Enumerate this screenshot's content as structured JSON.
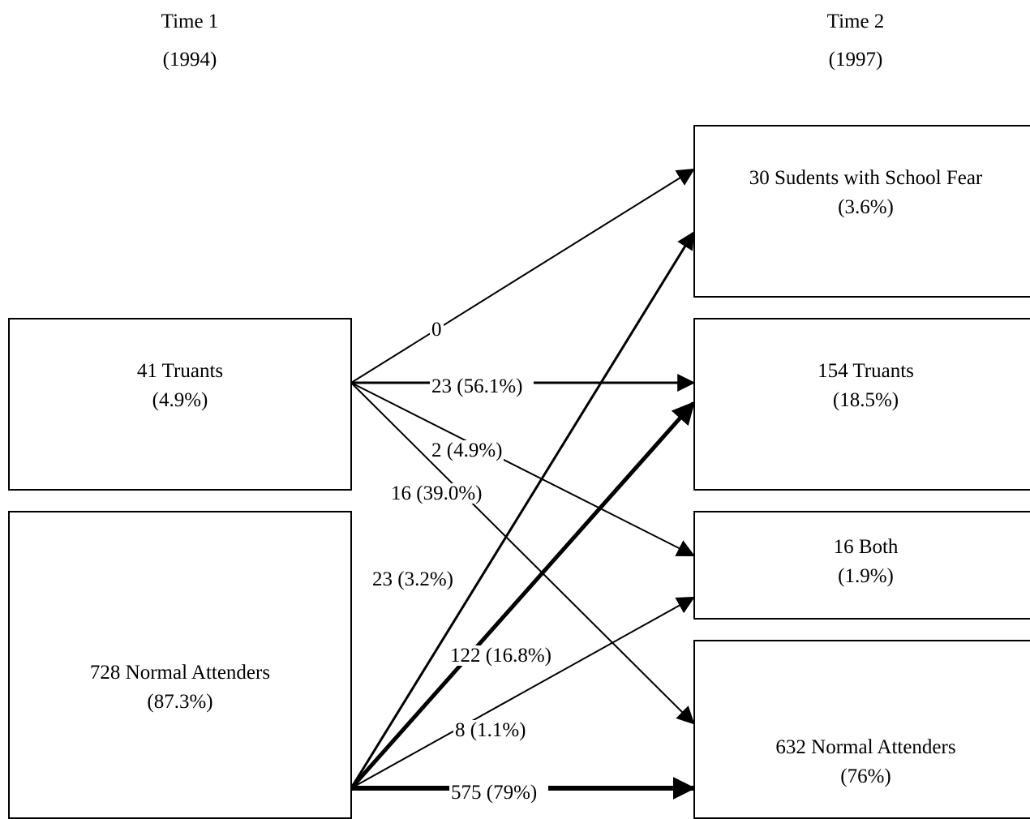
{
  "headers": {
    "time1": {
      "title": "Time 1",
      "year": "(1994)"
    },
    "time2": {
      "title": "Time 2",
      "year": "(1997)"
    }
  },
  "left_boxes": {
    "truants": {
      "name": "41 Truants",
      "pct": "(4.9%)"
    },
    "normal": {
      "name": "728 Normal Attenders",
      "pct": "(87.3%)"
    }
  },
  "right_boxes": {
    "school_fear": {
      "name": "30 Sudents with School Fear",
      "pct": "(3.6%)"
    },
    "truants": {
      "name": "154 Truants",
      "pct": "(18.5%)"
    },
    "both": {
      "name": "16 Both",
      "pct": "(1.9%)"
    },
    "normal": {
      "name": "632 Normal Attenders",
      "pct": "(76%)"
    }
  },
  "flows": {
    "truants_to_fear": "0",
    "truants_to_truants": "23 (56.1%)",
    "truants_to_both": "2 (4.9%)",
    "truants_to_normal": "16 (39.0%)",
    "normal_to_fear": "23 (3.2%)",
    "normal_to_truants": "122  (16.8%)",
    "normal_to_both": "8 (1.1%)",
    "normal_to_normal": "575 (79%)"
  }
}
